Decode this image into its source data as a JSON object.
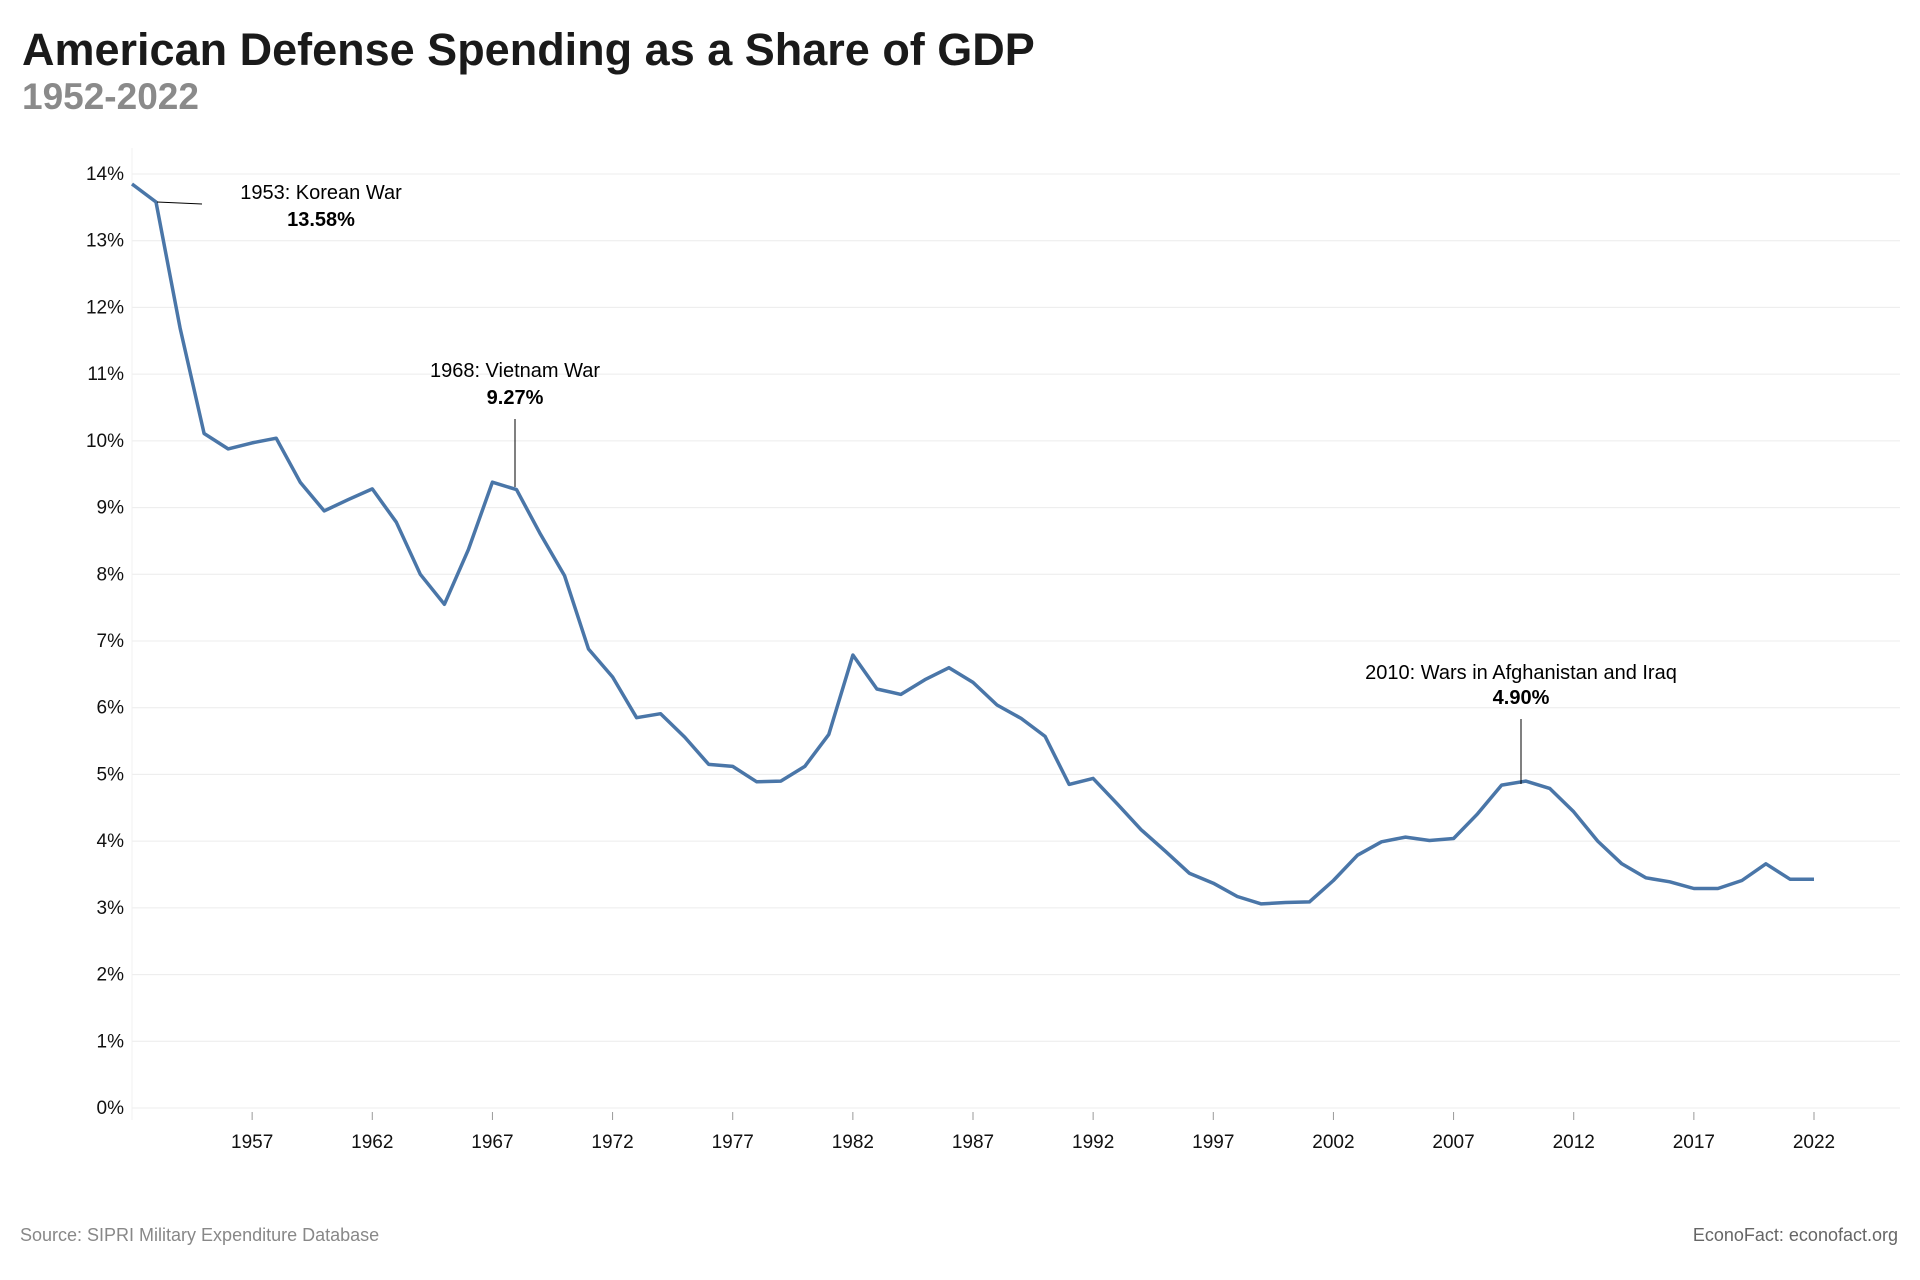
{
  "title": "American Defense Spending as a Share of GDP",
  "subtitle": "1952-2022",
  "source": "Source: SIPRI Military Expenditure Database",
  "credit": "EconoFact: econofact.org",
  "colors": {
    "line": "#4a76a8",
    "grid": "#ececec",
    "annotation": "#000000"
  },
  "chart_data": {
    "type": "line",
    "title": "American Defense Spending as a Share of GDP",
    "subtitle": "1952-2022",
    "xlabel": "",
    "ylabel": "",
    "xlim": [
      1952,
      2026
    ],
    "ylim": [
      0,
      14
    ],
    "grid": true,
    "x_ticks": [
      1957,
      1962,
      1967,
      1972,
      1977,
      1982,
      1987,
      1992,
      1997,
      2002,
      2007,
      2012,
      2017,
      2022
    ],
    "y_ticks": [
      "0%",
      "1%",
      "2%",
      "3%",
      "4%",
      "5%",
      "6%",
      "7%",
      "8%",
      "9%",
      "10%",
      "11%",
      "12%",
      "13%",
      "14%"
    ],
    "x": [
      1952,
      1953,
      1954,
      1955,
      1956,
      1957,
      1958,
      1959,
      1960,
      1961,
      1962,
      1963,
      1964,
      1965,
      1966,
      1967,
      1968,
      1969,
      1970,
      1971,
      1972,
      1973,
      1974,
      1975,
      1976,
      1977,
      1978,
      1979,
      1980,
      1981,
      1982,
      1983,
      1984,
      1985,
      1986,
      1987,
      1988,
      1989,
      1990,
      1991,
      1992,
      1993,
      1994,
      1995,
      1996,
      1997,
      1998,
      1999,
      2000,
      2001,
      2002,
      2003,
      2004,
      2005,
      2006,
      2007,
      2008,
      2009,
      2010,
      2011,
      2012,
      2013,
      2014,
      2015,
      2016,
      2017,
      2018,
      2019,
      2020,
      2021,
      2022
    ],
    "values": [
      13.85,
      13.58,
      11.69,
      10.11,
      9.88,
      9.97,
      10.04,
      9.38,
      8.95,
      9.12,
      9.28,
      8.78,
      8.0,
      7.55,
      8.37,
      9.38,
      9.27,
      8.6,
      7.98,
      6.88,
      6.46,
      5.85,
      5.91,
      5.56,
      5.15,
      5.12,
      4.89,
      4.9,
      5.12,
      5.6,
      6.79,
      6.28,
      6.2,
      6.42,
      6.6,
      6.38,
      6.04,
      5.84,
      5.57,
      4.85,
      4.94,
      4.56,
      4.17,
      3.85,
      3.52,
      3.37,
      3.17,
      3.06,
      3.08,
      3.09,
      3.41,
      3.79,
      3.99,
      4.06,
      4.01,
      4.04,
      4.41,
      4.84,
      4.9,
      4.79,
      4.44,
      4.0,
      3.66,
      3.45,
      3.39,
      3.29,
      3.29,
      3.41,
      3.66,
      3.43,
      3.43
    ],
    "annotations": [
      {
        "year": 1953,
        "label": "1953: Korean War",
        "value_label": "13.58%"
      },
      {
        "year": 1968,
        "label": "1968: Vietnam War",
        "value_label": "9.27%"
      },
      {
        "year": 2010,
        "label": "2010: Wars in Afghanistan and Iraq",
        "value_label": "4.90%"
      }
    ]
  }
}
